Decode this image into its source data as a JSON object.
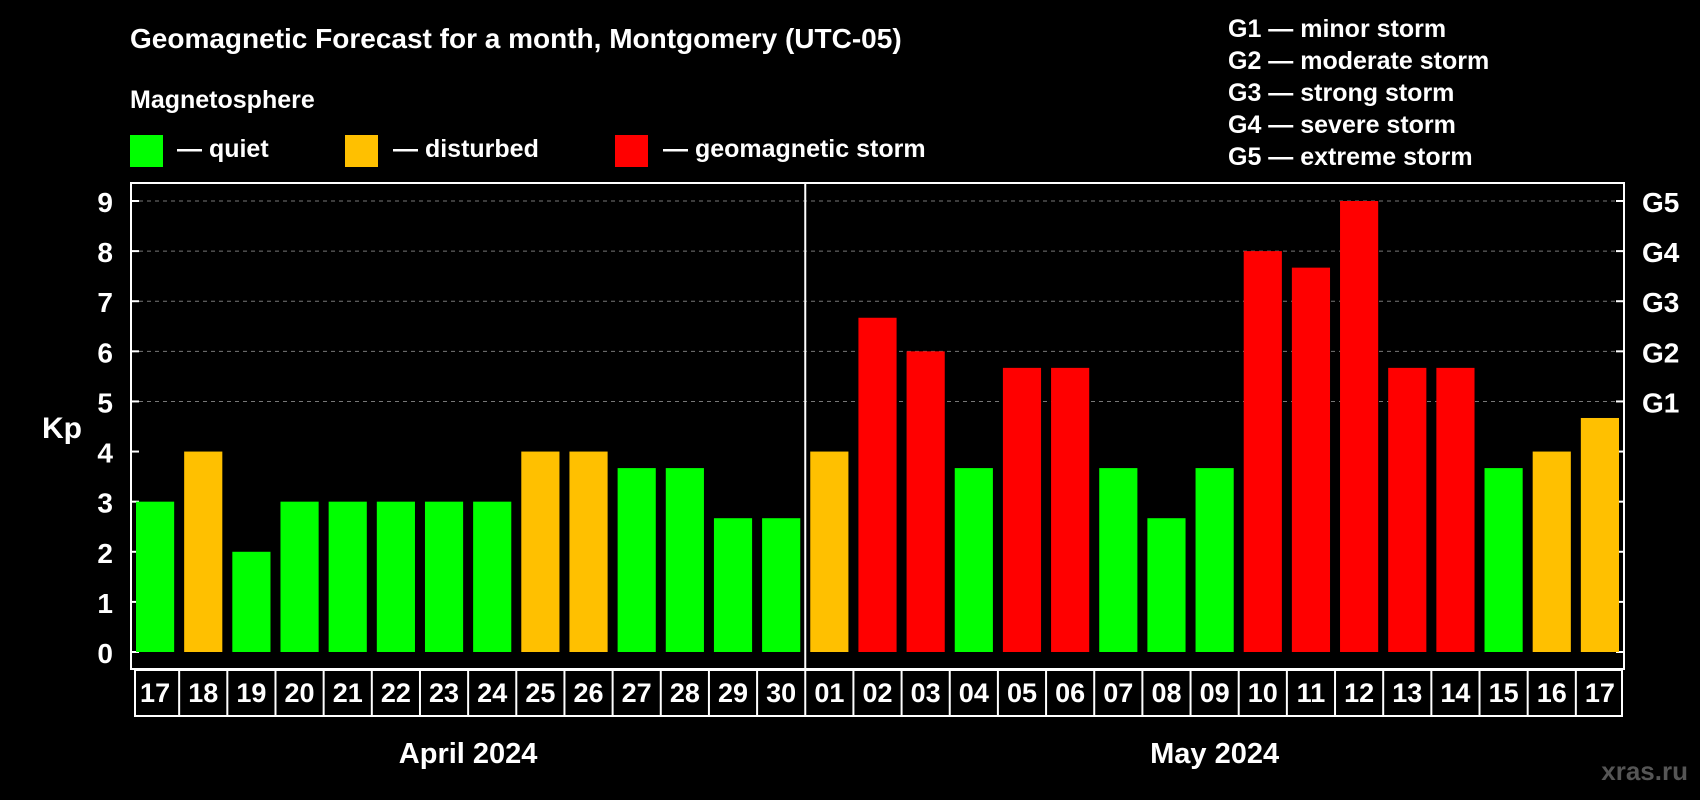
{
  "title": "Geomagnetic Forecast for a month, Montgomery (UTC-05)",
  "legend": {
    "heading": "Magnetosphere",
    "items": [
      {
        "label": "— quiet",
        "color": "#00ff00"
      },
      {
        "label": "— disturbed",
        "color": "#ffc000"
      },
      {
        "label": "— geomagnetic storm",
        "color": "#ff0000"
      }
    ]
  },
  "storm_scale": [
    "G1 — minor storm",
    "G2 — moderate storm",
    "G3 — strong storm",
    "G4 — severe storm",
    "G5 — extreme storm"
  ],
  "watermark": "xras.ru",
  "chart_data": {
    "type": "bar",
    "title": "Geomagnetic Forecast for a month, Montgomery (UTC-05)",
    "ylabel": "Kp",
    "ylim": [
      0,
      9
    ],
    "yticks": [
      "0",
      "1",
      "2",
      "3",
      "4",
      "5",
      "6",
      "7",
      "8",
      "9"
    ],
    "right_axis": [
      {
        "kp": 5,
        "label": "G1"
      },
      {
        "kp": 6,
        "label": "G2"
      },
      {
        "kp": 7,
        "label": "G3"
      },
      {
        "kp": 8,
        "label": "G4"
      },
      {
        "kp": 9,
        "label": "G5"
      }
    ],
    "categories": [
      "17",
      "18",
      "19",
      "20",
      "21",
      "22",
      "23",
      "24",
      "25",
      "26",
      "27",
      "28",
      "29",
      "30",
      "01",
      "02",
      "03",
      "04",
      "05",
      "06",
      "07",
      "08",
      "09",
      "10",
      "11",
      "12",
      "13",
      "14",
      "15",
      "16",
      "17"
    ],
    "values": [
      3,
      4,
      2,
      3,
      3,
      3,
      3,
      3,
      4,
      4,
      3.67,
      3.67,
      2.67,
      2.67,
      4,
      6.67,
      6,
      3.67,
      5.67,
      5.67,
      3.67,
      2.67,
      3.67,
      8,
      7.67,
      9,
      5.67,
      5.67,
      3.67,
      4,
      4.67
    ],
    "levels": [
      "quiet",
      "disturbed",
      "quiet",
      "quiet",
      "quiet",
      "quiet",
      "quiet",
      "quiet",
      "disturbed",
      "disturbed",
      "quiet",
      "quiet",
      "quiet",
      "quiet",
      "disturbed",
      "storm",
      "storm",
      "quiet",
      "storm",
      "storm",
      "quiet",
      "quiet",
      "quiet",
      "storm",
      "storm",
      "storm",
      "storm",
      "storm",
      "quiet",
      "disturbed",
      "disturbed"
    ],
    "level_colors": {
      "quiet": "#00ff00",
      "disturbed": "#ffc000",
      "storm": "#ff0000"
    },
    "months": [
      {
        "label": "April 2024",
        "start": 0,
        "end": 13
      },
      {
        "label": "May 2024",
        "start": 14,
        "end": 30
      }
    ],
    "grid": "dashed horizontal at Kp 5-9"
  }
}
